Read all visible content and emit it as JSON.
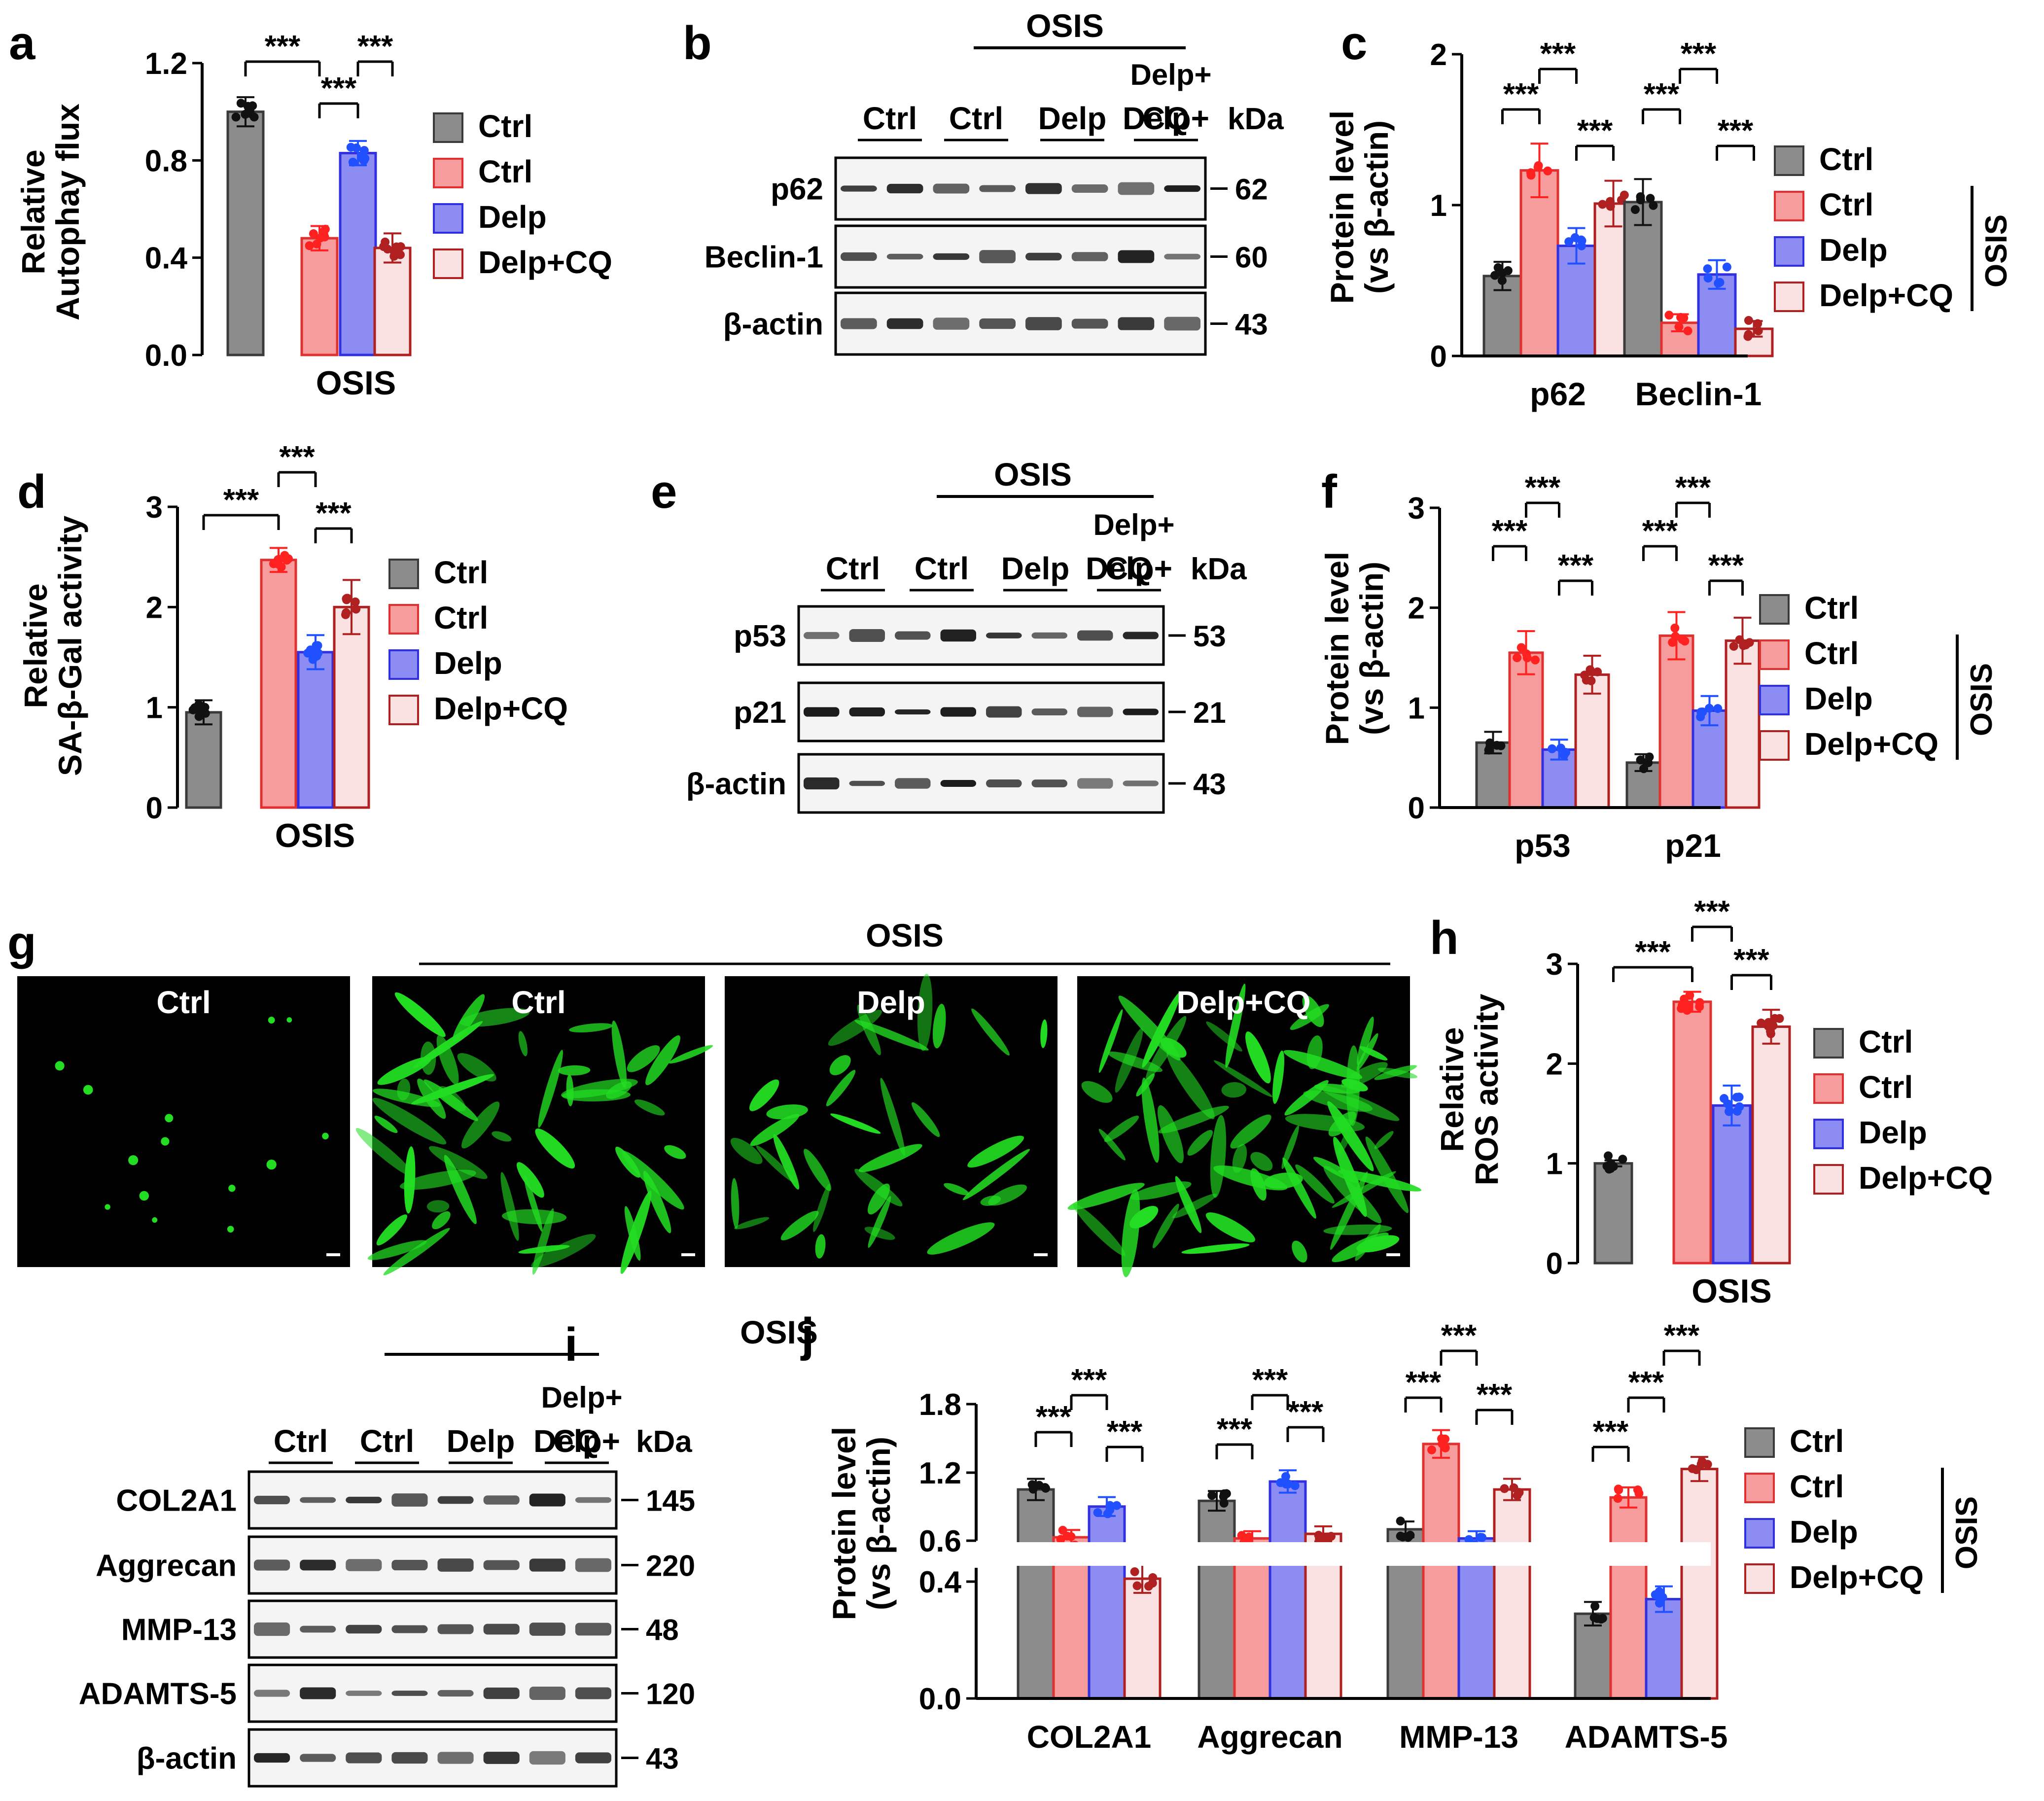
{
  "colors": {
    "ctrl": "#8c8c8c",
    "osis_ctrl": "#f79c9c",
    "delp": "#8c8cf2",
    "delp_cq": "#fbe2e2",
    "ctrl_stroke": "#3a3a3a",
    "osis_ctrl_stroke": "#e03030",
    "delp_stroke": "#3030e0",
    "delp_cq_stroke": "#b02020",
    "dot_ctrl": "#111111",
    "dot_osis_ctrl": "#ff2020",
    "dot_delp": "#2050ff",
    "dot_delp_cq": "#b02020",
    "fluor": "#22dd22"
  },
  "common": {
    "sig": "***",
    "osis": "OSIS",
    "kda": "kDa",
    "legend": [
      "Ctrl",
      "Ctrl",
      "Delp",
      "Delp+CQ"
    ],
    "lanes": [
      "Ctrl",
      "Ctrl",
      "Delp",
      "Delp+"
    ],
    "lane_cq": "CQ"
  },
  "panels": {
    "a": {
      "letter": "a",
      "ylabel1": "Relative",
      "ylabel2": "Autophay flux",
      "xlabel": "OSIS",
      "chart_data": {
        "type": "bar",
        "categories": [
          "Ctrl",
          "Ctrl",
          "Delp",
          "Delp+CQ"
        ],
        "values": [
          1.0,
          0.48,
          0.83,
          0.44
        ],
        "errors": [
          0.06,
          0.05,
          0.05,
          0.06
        ],
        "yticks": [
          "0.0",
          "0.4",
          "0.8",
          "1.2"
        ],
        "ylim": [
          0,
          1.2
        ]
      }
    },
    "d": {
      "letter": "d",
      "ylabel1": "Relative",
      "ylabel2": "SA-β-Gal activity",
      "xlabel": "OSIS",
      "chart_data": {
        "type": "bar",
        "categories": [
          "Ctrl",
          "Ctrl",
          "Delp",
          "Delp+CQ"
        ],
        "values": [
          0.95,
          2.47,
          1.55,
          2.0
        ],
        "errors": [
          0.12,
          0.12,
          0.17,
          0.27
        ],
        "yticks": [
          "0",
          "1",
          "2",
          "3"
        ],
        "ylim": [
          0,
          3
        ]
      }
    },
    "h": {
      "letter": "h",
      "ylabel1": "Relative",
      "ylabel2": "ROS activity",
      "xlabel": "OSIS",
      "chart_data": {
        "type": "bar",
        "categories": [
          "Ctrl",
          "Ctrl",
          "Delp",
          "Delp+CQ"
        ],
        "values": [
          1.0,
          2.62,
          1.58,
          2.37
        ],
        "errors": [
          0.03,
          0.1,
          0.2,
          0.17
        ],
        "yticks": [
          "0",
          "1",
          "2",
          "3"
        ],
        "ylim": [
          0,
          3
        ]
      }
    },
    "c": {
      "letter": "c",
      "ylabel1": "Protein level",
      "ylabel2": "(vs β-actin)",
      "chart_data": {
        "type": "bar",
        "categories": [
          "p62",
          "Beclin-1"
        ],
        "series": [
          {
            "name": "Ctrl",
            "values": [
              0.53,
              1.02
            ]
          },
          {
            "name": "Ctrl",
            "values": [
              1.23,
              0.22
            ]
          },
          {
            "name": "Delp",
            "values": [
              0.73,
              0.54
            ]
          },
          {
            "name": "Delp+CQ",
            "values": [
              1.01,
              0.18
            ]
          }
        ],
        "yticks": [
          "0",
          "1",
          "2"
        ],
        "ylim": [
          0,
          2
        ]
      }
    },
    "f": {
      "letter": "f",
      "ylabel1": "Protein level",
      "ylabel2": "(vs β-actin)",
      "chart_data": {
        "type": "bar",
        "categories": [
          "p53",
          "p21"
        ],
        "series": [
          {
            "name": "Ctrl",
            "values": [
              0.65,
              0.45
            ]
          },
          {
            "name": "Ctrl",
            "values": [
              1.55,
              1.72
            ]
          },
          {
            "name": "Delp",
            "values": [
              0.58,
              0.97
            ]
          },
          {
            "name": "Delp+CQ",
            "values": [
              1.33,
              1.67
            ]
          }
        ],
        "yticks": [
          "0",
          "1",
          "2",
          "3"
        ],
        "ylim": [
          0,
          3
        ]
      }
    },
    "j": {
      "letter": "j",
      "ylabel1": "Protein level",
      "ylabel2": "(vs β-actin)",
      "chart_data": {
        "type": "bar",
        "categories": [
          "COL2A1",
          "Aggrecan",
          "MMP-13",
          "ADAMTS-5"
        ],
        "series": [
          {
            "name": "Ctrl",
            "values": [
              1.05,
              0.95,
              0.7,
              0.29
            ]
          },
          {
            "name": "Ctrl",
            "values": [
              0.63,
              0.62,
              1.45,
              0.98
            ]
          },
          {
            "name": "Delp",
            "values": [
              0.9,
              1.12,
              0.62,
              0.34
            ]
          },
          {
            "name": "Delp+CQ",
            "values": [
              0.41,
              0.66,
              1.05,
              1.23
            ]
          }
        ],
        "yticks_upper": [
          "0.6",
          "1.2",
          "1.8"
        ],
        "yticks_lower": [
          "0.0",
          "0.4"
        ],
        "axis_break": [
          0.45,
          0.55
        ]
      }
    },
    "b": {
      "letter": "b",
      "rows": [
        {
          "label": "p62",
          "kda": "62"
        },
        {
          "label": "Beclin-1",
          "kda": "60"
        },
        {
          "label": "β-actin",
          "kda": "43"
        }
      ]
    },
    "e": {
      "letter": "e",
      "rows": [
        {
          "label": "p53",
          "kda": "53"
        },
        {
          "label": "p21",
          "kda": "21"
        },
        {
          "label": "β-actin",
          "kda": "43"
        }
      ]
    },
    "i": {
      "letter": "i",
      "rows": [
        {
          "label": "COL2A1",
          "kda": "145"
        },
        {
          "label": "Aggrecan",
          "kda": "220"
        },
        {
          "label": "MMP-13",
          "kda": "48"
        },
        {
          "label": "ADAMTS-5",
          "kda": "120"
        },
        {
          "label": "β-actin",
          "kda": "43"
        }
      ]
    },
    "g": {
      "letter": "g",
      "osis": "OSIS",
      "images": [
        "Ctrl",
        "Ctrl",
        "Delp",
        "Delp+CQ"
      ]
    }
  }
}
